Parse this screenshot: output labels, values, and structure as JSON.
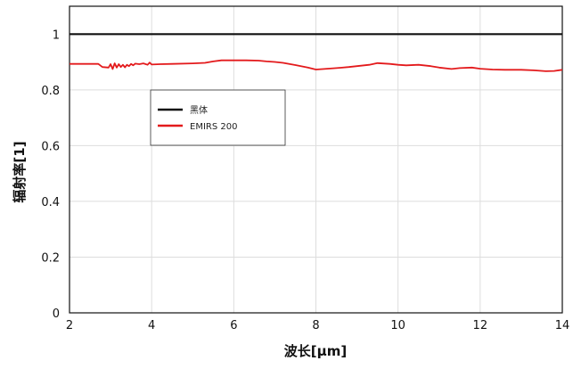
{
  "chart_data": {
    "type": "line",
    "xlabel": "波长[μm]",
    "ylabel": "辐射率[1]",
    "xlim": [
      2,
      14
    ],
    "ylim": [
      0,
      1.1
    ],
    "xticks": [
      2,
      4,
      6,
      8,
      10,
      12,
      14
    ],
    "yticks": [
      0,
      0.2,
      0.4,
      0.6,
      0.8,
      1
    ],
    "xtick_labels": [
      "2",
      "4",
      "6",
      "8",
      "10",
      "12",
      "14"
    ],
    "ytick_labels": [
      "0",
      "0.2",
      "0.4",
      "0.6",
      "0.8",
      "1"
    ],
    "grid": true,
    "legend_position": "upper-left inside",
    "series": [
      {
        "name": "黑体",
        "color": "#111111",
        "x": [
          2,
          14
        ],
        "y": [
          1.0,
          1.0
        ]
      },
      {
        "name": "EMIRS 200",
        "color": "#e31a1c",
        "x": [
          2.0,
          2.3,
          2.6,
          2.7,
          2.8,
          2.95,
          3.0,
          3.05,
          3.1,
          3.15,
          3.2,
          3.25,
          3.3,
          3.35,
          3.4,
          3.45,
          3.5,
          3.55,
          3.6,
          3.7,
          3.8,
          3.9,
          3.95,
          4.0,
          4.2,
          4.5,
          5.0,
          5.3,
          5.5,
          5.7,
          6.0,
          6.3,
          6.6,
          6.8,
          7.0,
          7.2,
          7.5,
          7.8,
          8.0,
          8.2,
          8.5,
          8.8,
          9.0,
          9.3,
          9.5,
          9.8,
          10.0,
          10.2,
          10.5,
          10.8,
          11.0,
          11.3,
          11.5,
          11.8,
          12.0,
          12.3,
          12.6,
          13.0,
          13.3,
          13.6,
          13.8,
          14.0
        ],
        "y": [
          0.893,
          0.893,
          0.893,
          0.893,
          0.882,
          0.88,
          0.892,
          0.875,
          0.895,
          0.88,
          0.892,
          0.882,
          0.89,
          0.881,
          0.89,
          0.885,
          0.893,
          0.888,
          0.894,
          0.892,
          0.895,
          0.89,
          0.898,
          0.891,
          0.892,
          0.893,
          0.895,
          0.897,
          0.902,
          0.906,
          0.906,
          0.906,
          0.905,
          0.902,
          0.9,
          0.897,
          0.889,
          0.88,
          0.873,
          0.875,
          0.878,
          0.882,
          0.885,
          0.89,
          0.896,
          0.893,
          0.89,
          0.888,
          0.89,
          0.885,
          0.88,
          0.875,
          0.878,
          0.88,
          0.876,
          0.873,
          0.872,
          0.872,
          0.87,
          0.867,
          0.868,
          0.872
        ]
      }
    ]
  }
}
